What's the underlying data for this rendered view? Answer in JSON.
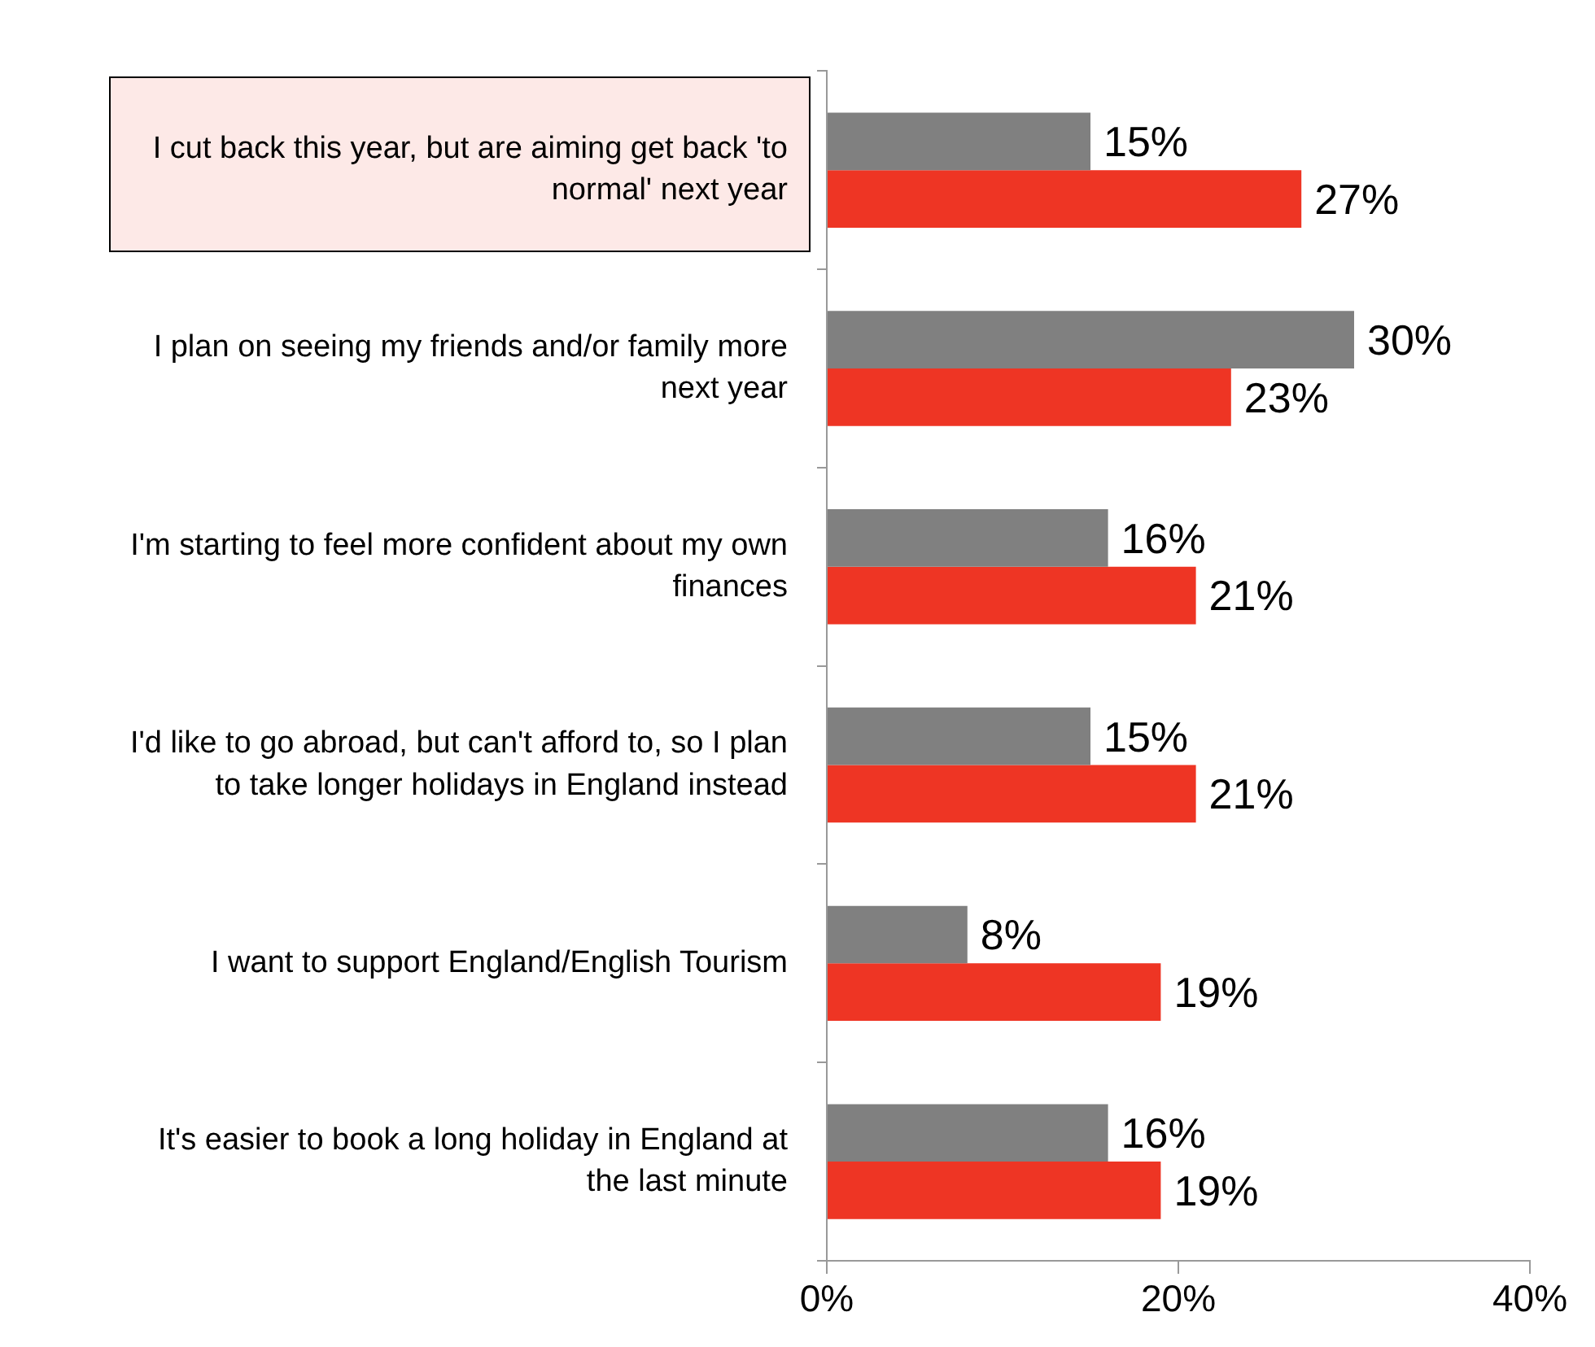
{
  "chart_data": {
    "type": "bar",
    "orientation": "horizontal",
    "categories": [
      "I cut back this year, but are aiming get back 'to normal' next year",
      "I plan on seeing my friends and/or family more next year",
      "I'm starting to feel more confident about my own finances",
      "I'd like to go abroad, but can't afford to, so I plan to take longer holidays in England instead",
      "I want to support England/English Tourism",
      "It's easier to book a long holiday in England at the last minute"
    ],
    "series": [
      {
        "color": "#808080",
        "values": [
          15,
          30,
          16,
          15,
          8,
          16
        ],
        "value_labels": [
          "15%",
          "30%",
          "16%",
          "15%",
          "8%",
          "16%"
        ]
      },
      {
        "color": "#ee3524",
        "values": [
          27,
          23,
          21,
          21,
          19,
          19
        ],
        "value_labels": [
          "27%",
          "23%",
          "21%",
          "21%",
          "19%",
          "19%"
        ]
      }
    ],
    "xlim": [
      0,
      40
    ],
    "xticks": [
      {
        "value": 0,
        "label": "0%"
      },
      {
        "value": 20,
        "label": "20%"
      },
      {
        "value": 40,
        "label": "40%"
      }
    ],
    "grid": false,
    "legend": false
  }
}
